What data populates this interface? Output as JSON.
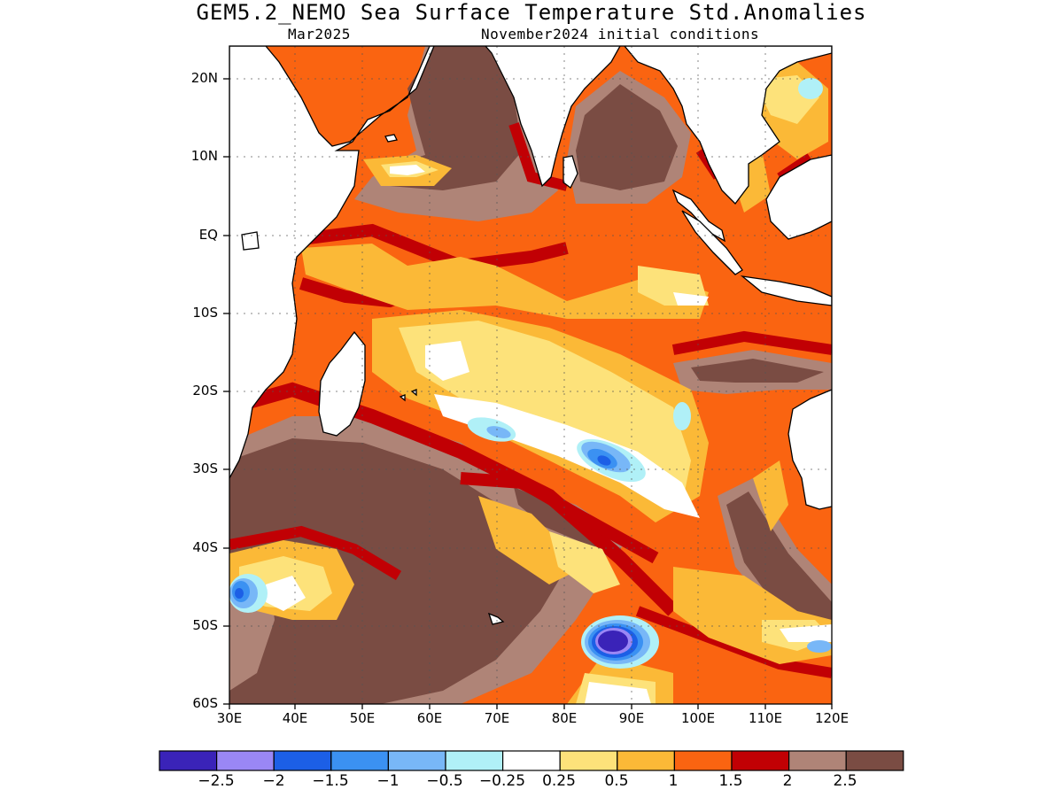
{
  "header": {
    "title": "GEM5.2_NEMO Sea Surface Temperature Std.Anomalies",
    "valid_month": "Mar2025",
    "initial_conditions": "November2024 initial conditions"
  },
  "map": {
    "lon_range": [
      30,
      120
    ],
    "lat_range": [
      -60,
      24
    ],
    "lat_ticks": [
      {
        "value": 20,
        "label": "20N"
      },
      {
        "value": 10,
        "label": "10N"
      },
      {
        "value": 0,
        "label": "EQ"
      },
      {
        "value": -10,
        "label": "10S"
      },
      {
        "value": -20,
        "label": "20S"
      },
      {
        "value": -30,
        "label": "30S"
      },
      {
        "value": -40,
        "label": "40S"
      },
      {
        "value": -50,
        "label": "50S"
      },
      {
        "value": -60,
        "label": "60S"
      }
    ],
    "lon_ticks": [
      {
        "value": 30,
        "label": "30E"
      },
      {
        "value": 40,
        "label": "40E"
      },
      {
        "value": 50,
        "label": "50E"
      },
      {
        "value": 60,
        "label": "60E"
      },
      {
        "value": 70,
        "label": "70E"
      },
      {
        "value": 80,
        "label": "80E"
      },
      {
        "value": 90,
        "label": "90E"
      },
      {
        "value": 100,
        "label": "100E"
      },
      {
        "value": 110,
        "label": "110E"
      },
      {
        "value": 120,
        "label": "120E"
      }
    ],
    "grid": true
  },
  "colorbar": {
    "colors": [
      "#3a23b8",
      "#9a87f5",
      "#1c5fe6",
      "#3b91f2",
      "#78b7f7",
      "#b0f0f7",
      "#ffffff",
      "#fde27a",
      "#fbb937",
      "#fa6411",
      "#c10004",
      "#af8477",
      "#7a4c43"
    ],
    "labels": [
      "−2.5",
      "−2",
      "−1.5",
      "−1",
      "−0.5",
      "−0.25",
      "0.25",
      "0.5",
      "1",
      "1.5",
      "2",
      "2.5"
    ]
  }
}
